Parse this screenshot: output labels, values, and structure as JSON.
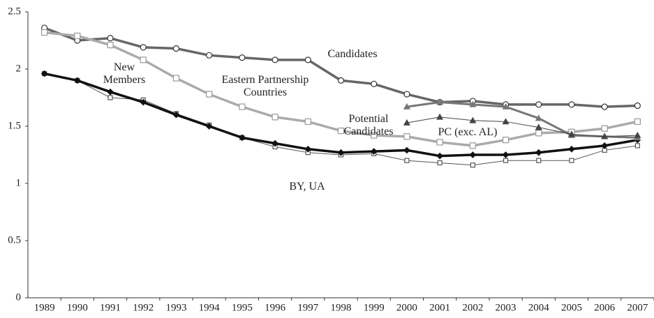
{
  "chart_data": {
    "type": "line",
    "categories": [
      "1989",
      "1990",
      "1991",
      "1992",
      "1993",
      "1994",
      "1995",
      "1996",
      "1997",
      "1998",
      "1999",
      "2000",
      "2001",
      "2002",
      "2003",
      "2004",
      "2005",
      "2006",
      "2007"
    ],
    "ylim": [
      0,
      2.5
    ],
    "yticks": [
      0,
      0.5,
      1,
      1.5,
      2,
      2.5
    ],
    "grid": false,
    "series": [
      {
        "name": "Candidates",
        "color": "#666666",
        "values": [
          2.36,
          2.25,
          2.27,
          2.19,
          2.18,
          2.12,
          2.1,
          2.08,
          2.08,
          1.9,
          1.87,
          1.78,
          1.71,
          1.72,
          1.69,
          1.69,
          1.69,
          1.67,
          1.68
        ]
      },
      {
        "name": "Eastern Partnership Countries",
        "color": "#aaaaaa",
        "values": [
          2.32,
          2.29,
          2.21,
          2.08,
          1.92,
          1.78,
          1.67,
          1.58,
          1.54,
          1.46,
          1.42,
          1.41,
          1.36,
          1.33,
          1.38,
          1.44,
          1.45,
          1.48,
          1.54
        ]
      },
      {
        "name": "New Members",
        "color": "#555555",
        "values": [
          1.96,
          1.9,
          1.75,
          1.73,
          1.61,
          1.51,
          1.4,
          1.32,
          1.27,
          1.25,
          1.26,
          1.2,
          1.18,
          1.16,
          1.2,
          1.2,
          1.2,
          1.29,
          1.33
        ]
      },
      {
        "name": "BY, UA",
        "color": "#111111",
        "values": [
          1.96,
          1.9,
          1.8,
          1.71,
          1.6,
          1.5,
          1.4,
          1.35,
          1.3,
          1.27,
          1.28,
          1.29,
          1.24,
          1.25,
          1.25,
          1.27,
          1.3,
          1.33,
          1.38
        ]
      },
      {
        "name": "Potential Candidates",
        "color": "#777777",
        "values": [
          null,
          null,
          null,
          null,
          null,
          null,
          null,
          null,
          null,
          null,
          null,
          1.67,
          1.71,
          1.69,
          1.67,
          1.57,
          1.42,
          1.41,
          1.4
        ]
      },
      {
        "name": "PC (exc. AL)",
        "color": "#444444",
        "values": [
          null,
          null,
          null,
          null,
          null,
          null,
          null,
          null,
          null,
          null,
          null,
          1.53,
          1.58,
          1.55,
          1.54,
          1.49,
          1.43,
          1.41,
          1.42
        ]
      }
    ]
  }
}
